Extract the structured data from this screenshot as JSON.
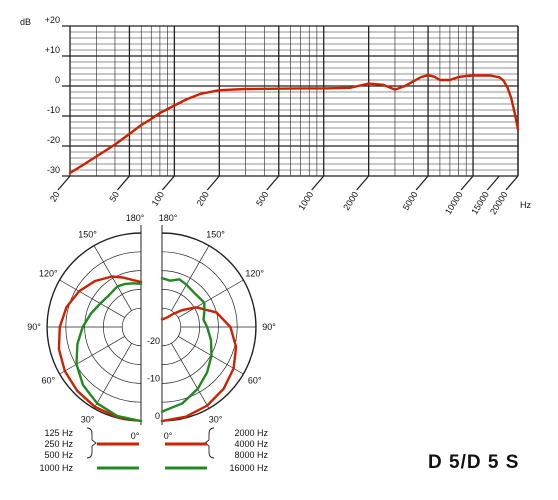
{
  "model_label": "D 5/D 5 S",
  "chart_data": [
    {
      "type": "line",
      "title": "",
      "ylabel": "dB",
      "xlabel": "Hz",
      "xscale": "log",
      "grid": true,
      "xlim": [
        20,
        20000
      ],
      "ylim": [
        -30,
        20
      ],
      "y_ticks": [
        20,
        10,
        0,
        -10,
        -20,
        -30
      ],
      "y_tick_labels": [
        "+20",
        "+10",
        "0",
        "-10",
        "-20",
        "-30"
      ],
      "x_ticks": [
        20,
        50,
        100,
        200,
        500,
        1000,
        2000,
        5000,
        10000,
        15000,
        20000
      ],
      "x_tick_labels": [
        "20",
        "50",
        "100",
        "200",
        "500",
        "1000",
        "2000",
        "5000",
        "10000",
        "15000",
        "20000"
      ],
      "color": "#cc2200",
      "series": [
        {
          "x": [
            20,
            25,
            30,
            40,
            50,
            60,
            70,
            80,
            100,
            120,
            150,
            200,
            300,
            500,
            700,
            1000,
            1500,
            1700,
            2000,
            2500,
            3000,
            3500,
            4000,
            4500,
            5000,
            5500,
            6000,
            7000,
            8000,
            9000,
            10000,
            11000,
            13000,
            15000,
            16000,
            17000,
            18000,
            19000,
            20000
          ],
          "values": [
            -29,
            -26,
            -23.5,
            -19.5,
            -16,
            -13,
            -11,
            -9,
            -6.5,
            -4.5,
            -2.6,
            -1.4,
            -1,
            -0.9,
            -0.8,
            -0.8,
            -0.6,
            0,
            0.8,
            0.4,
            -1.2,
            0,
            1.6,
            3,
            3.6,
            3.1,
            2,
            2,
            3,
            3.3,
            3.5,
            3.5,
            3.5,
            2.9,
            1.8,
            -0.5,
            -4,
            -9,
            -14.5
          ]
        }
      ]
    },
    {
      "type": "polar",
      "title": "",
      "angle_labels": [
        "180°",
        "150°",
        "120°",
        "90°",
        "60°",
        "30°",
        "0°"
      ],
      "radius_labels": [
        "0",
        "-10",
        "-20"
      ],
      "rlim": [
        -25,
        0
      ],
      "rings_db": [
        0,
        -5,
        -10,
        -15,
        -20,
        -25
      ],
      "legend": [
        {
          "side": "left",
          "frequencies": [
            "125 Hz",
            "250 Hz",
            "500 Hz"
          ],
          "color": "#cc2200"
        },
        {
          "side": "left",
          "frequencies": [
            "1000 Hz"
          ],
          "color": "#228822"
        },
        {
          "side": "right",
          "frequencies": [
            "2000 Hz",
            "4000 Hz",
            "8000 Hz"
          ],
          "color": "#cc2200"
        },
        {
          "side": "right",
          "frequencies": [
            "16000 Hz"
          ],
          "color": "#228822"
        }
      ],
      "series": [
        {
          "name": "125 Hz / 250 Hz / 500 Hz",
          "side": "left",
          "color": "#cc2200",
          "angle_deg": [
            0,
            15,
            30,
            45,
            60,
            75,
            90,
            105,
            120,
            135,
            150,
            160,
            170,
            180
          ],
          "level_db": [
            0,
            -0.2,
            -0.5,
            -1,
            -1.6,
            -2.4,
            -3.4,
            -4.5,
            -6,
            -7.7,
            -9.5,
            -11,
            -12.3,
            -13
          ]
        },
        {
          "name": "1000 Hz",
          "side": "left",
          "color": "#228822",
          "angle_deg": [
            0,
            15,
            30,
            45,
            60,
            75,
            90,
            105,
            120,
            135,
            150,
            160,
            170,
            180
          ],
          "level_db": [
            0,
            -0.5,
            -1.6,
            -3.2,
            -5.2,
            -7.5,
            -9.5,
            -11.2,
            -12.5,
            -13,
            -12.5,
            -12.8,
            -13.2,
            -13.5
          ]
        },
        {
          "name": "2000 Hz / 4000 Hz / 8000 Hz",
          "side": "right",
          "color": "#cc2200",
          "angle_deg": [
            0,
            15,
            30,
            45,
            60,
            75,
            90,
            105,
            120,
            130,
            140,
            150,
            160,
            170,
            180
          ],
          "level_db": [
            0,
            -0.3,
            -0.9,
            -1.8,
            -3,
            -4.6,
            -6.8,
            -10,
            -14.5,
            -18,
            -20.5,
            -22,
            -22.5,
            -22.8,
            -23
          ]
        },
        {
          "name": "16000 Hz",
          "side": "right",
          "color": "#228822",
          "angle_deg": [
            0,
            15,
            30,
            45,
            60,
            75,
            90,
            100,
            110,
            120,
            135,
            150,
            160,
            170,
            180
          ],
          "level_db": [
            -2.5,
            -4,
            -6,
            -8,
            -9.8,
            -11.5,
            -13,
            -13.8,
            -13,
            -12,
            -12.5,
            -12,
            -11.5,
            -12.5,
            -12
          ]
        }
      ]
    }
  ]
}
